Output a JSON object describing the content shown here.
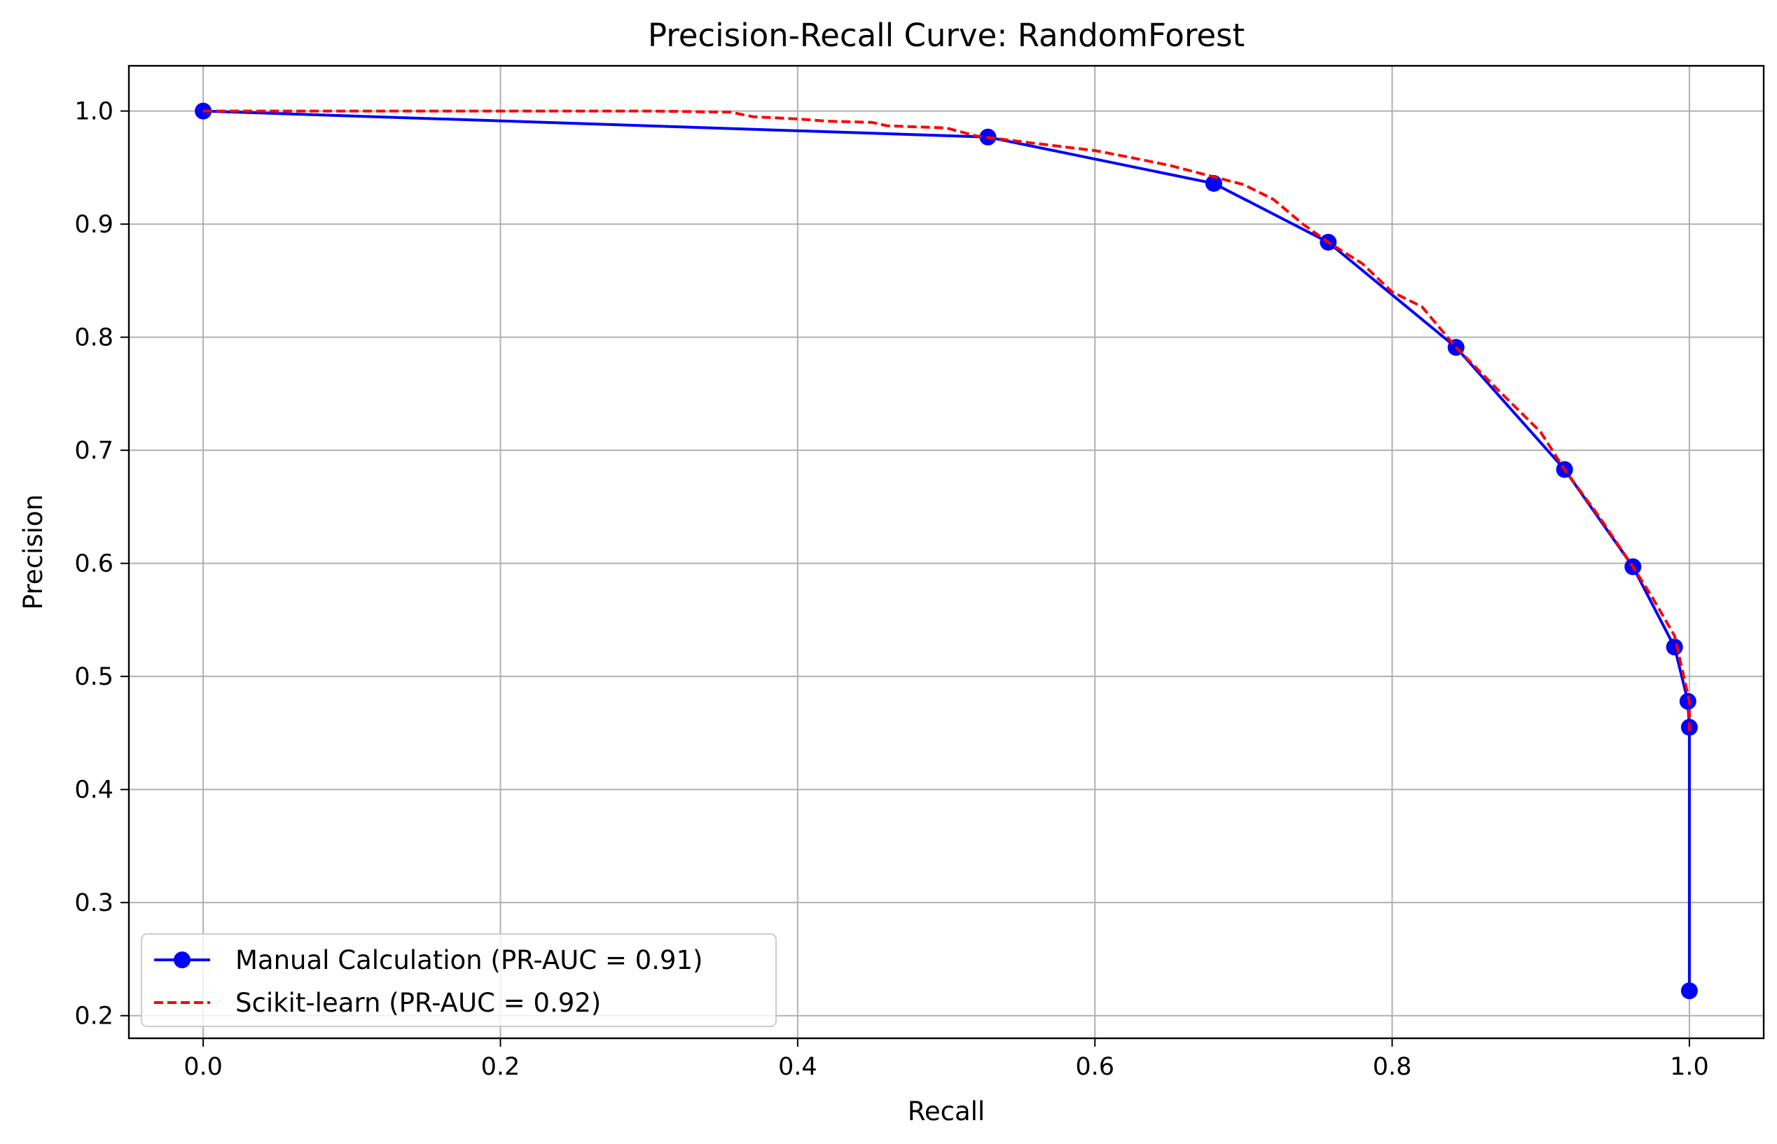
{
  "chart_data": {
    "type": "line",
    "title": "Precision-Recall Curve: RandomForest",
    "xlabel": "Recall",
    "ylabel": "Precision",
    "xlim": [
      -0.05,
      1.05
    ],
    "ylim": [
      0.18,
      1.04
    ],
    "xticks": [
      0.0,
      0.2,
      0.4,
      0.6,
      0.8,
      1.0
    ],
    "xtick_labels": [
      "0.0",
      "0.2",
      "0.4",
      "0.6",
      "0.8",
      "1.0"
    ],
    "yticks": [
      0.2,
      0.3,
      0.4,
      0.5,
      0.6,
      0.7,
      0.8,
      0.9,
      1.0
    ],
    "ytick_labels": [
      "0.2",
      "0.3",
      "0.4",
      "0.5",
      "0.6",
      "0.7",
      "0.8",
      "0.9",
      "1.0"
    ],
    "grid": true,
    "legend_position": "lower-left",
    "series": [
      {
        "name": "Manual Calculation (PR-AUC = 0.91)",
        "color": "#0000ff",
        "line_style": "solid",
        "marker": "circle",
        "x": [
          0.0,
          0.528,
          0.68,
          0.757,
          0.843,
          0.916,
          0.962,
          0.99,
          0.999,
          1.0,
          1.0
        ],
        "y": [
          1.0,
          0.977,
          0.936,
          0.884,
          0.791,
          0.683,
          0.597,
          0.526,
          0.478,
          0.455,
          0.222
        ]
      },
      {
        "name": "Scikit-learn (PR-AUC = 0.92)",
        "color": "#ff0000",
        "line_style": "dashed",
        "marker": "none",
        "x": [
          0.0,
          0.05,
          0.1,
          0.15,
          0.2,
          0.25,
          0.3,
          0.355,
          0.37,
          0.4,
          0.42,
          0.45,
          0.46,
          0.5,
          0.52,
          0.55,
          0.6,
          0.62,
          0.65,
          0.7,
          0.72,
          0.74,
          0.757,
          0.78,
          0.8,
          0.82,
          0.843,
          0.87,
          0.9,
          0.916,
          0.94,
          0.962,
          0.975,
          0.99,
          1.0,
          1.0
        ],
        "y": [
          1.0,
          1.0,
          1.0,
          1.0,
          1.0,
          1.0,
          1.0,
          0.999,
          0.995,
          0.993,
          0.991,
          0.99,
          0.987,
          0.985,
          0.978,
          0.973,
          0.965,
          0.96,
          0.952,
          0.935,
          0.922,
          0.9,
          0.884,
          0.865,
          0.84,
          0.827,
          0.791,
          0.755,
          0.716,
          0.683,
          0.64,
          0.597,
          0.57,
          0.536,
          0.478,
          0.45
        ]
      }
    ]
  }
}
